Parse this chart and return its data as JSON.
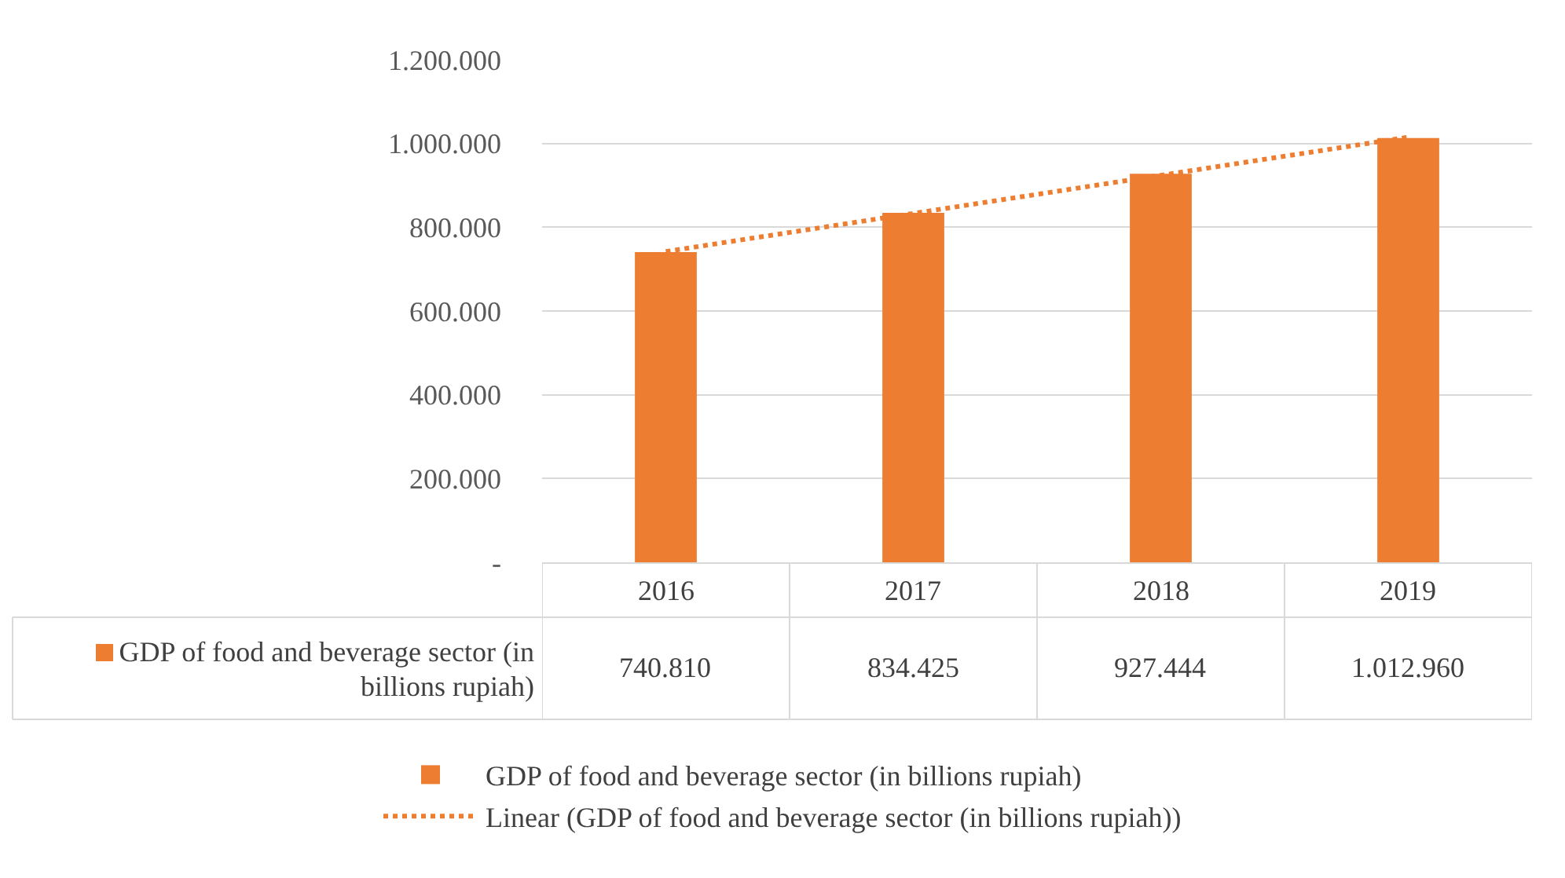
{
  "chart_data": {
    "type": "bar",
    "categories": [
      "2016",
      "2017",
      "2018",
      "2019"
    ],
    "series": [
      {
        "name": "GDP of food and beverage sector (in billions rupiah)",
        "color": "#ed7d31",
        "values": [
          740810,
          834425,
          927444,
          1012960
        ],
        "value_labels": [
          "740.810",
          "834.425",
          "927.444",
          "1.012.960"
        ]
      },
      {
        "name": "Linear (GDP of food and beverage sector (in billions rupiah))",
        "type": "line",
        "color": "#ed7d31",
        "line_style": "dotted",
        "marker": "none",
        "values": [
          742000,
          833000,
          924000,
          1015000
        ]
      }
    ],
    "ylim": [
      0,
      1200000
    ],
    "yticks": [
      {
        "value": 0,
        "label": "-"
      },
      {
        "value": 200000,
        "label": "200.000"
      },
      {
        "value": 400000,
        "label": "400.000"
      },
      {
        "value": 600000,
        "label": "600.000"
      },
      {
        "value": 800000,
        "label": "800.000"
      },
      {
        "value": 1000000,
        "label": "1.000.000"
      },
      {
        "value": 1200000,
        "label": "1.200.000"
      }
    ],
    "grid": "y",
    "legend": "bottom"
  }
}
